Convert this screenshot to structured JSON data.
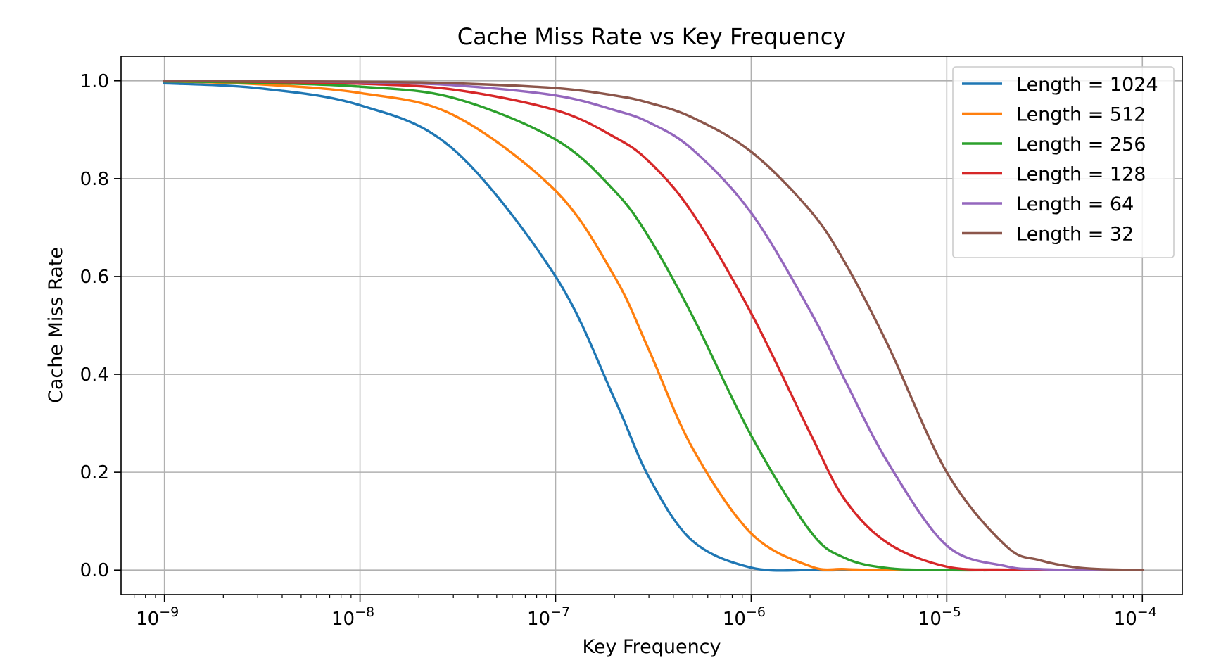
{
  "chart_data": {
    "type": "line",
    "title": "Cache Miss Rate vs Key Frequency",
    "xlabel": "Key Frequency",
    "ylabel": "Cache Miss Rate",
    "xscale": "log",
    "xlim": [
      6e-10,
      0.00016
    ],
    "ylim": [
      -0.05,
      1.05
    ],
    "grid": true,
    "legend_position": "top-right",
    "x_ticks": [
      {
        "value": 1e-09,
        "base": "10",
        "exp": "−9"
      },
      {
        "value": 1e-08,
        "base": "10",
        "exp": "−8"
      },
      {
        "value": 1e-07,
        "base": "10",
        "exp": "−7"
      },
      {
        "value": 1e-06,
        "base": "10",
        "exp": "−6"
      },
      {
        "value": 1e-05,
        "base": "10",
        "exp": "−5"
      },
      {
        "value": 0.0001,
        "base": "10",
        "exp": "−4"
      }
    ],
    "y_ticks": [
      {
        "value": 0.0,
        "label": "0.0"
      },
      {
        "value": 0.2,
        "label": "0.2"
      },
      {
        "value": 0.4,
        "label": "0.4"
      },
      {
        "value": 0.6,
        "label": "0.6"
      },
      {
        "value": 0.8,
        "label": "0.8"
      },
      {
        "value": 1.0,
        "label": "1.0"
      }
    ],
    "x": [
      1e-09,
      3e-09,
      1e-08,
      3e-08,
      1e-07,
      2e-07,
      3e-07,
      5e-07,
      1e-06,
      2e-06,
      3e-06,
      5e-06,
      1e-05,
      2e-05,
      3e-05,
      5e-05,
      0.0001
    ],
    "series": [
      {
        "name": "Length = 1024",
        "color": "#1f77b4",
        "values": [
          0.995,
          0.985,
          0.95,
          0.86,
          0.6,
          0.35,
          0.19,
          0.06,
          0.005,
          0.0,
          0.0,
          0.0,
          0.0,
          0.0,
          0.0,
          0.0,
          0.0
        ]
      },
      {
        "name": "Length = 512",
        "color": "#ff7f0e",
        "values": [
          0.999,
          0.993,
          0.975,
          0.93,
          0.775,
          0.6,
          0.45,
          0.25,
          0.075,
          0.008,
          0.002,
          0.0,
          0.0,
          0.0,
          0.0,
          0.0,
          0.0
        ]
      },
      {
        "name": "Length = 256",
        "color": "#2ca02c",
        "values": [
          0.999,
          0.996,
          0.988,
          0.965,
          0.88,
          0.775,
          0.68,
          0.52,
          0.275,
          0.08,
          0.025,
          0.004,
          0.0,
          0.0,
          0.0,
          0.0,
          0.0
        ]
      },
      {
        "name": "Length = 128",
        "color": "#d62728",
        "values": [
          1.0,
          0.998,
          0.994,
          0.982,
          0.94,
          0.885,
          0.835,
          0.73,
          0.525,
          0.28,
          0.145,
          0.055,
          0.007,
          0.001,
          0.0,
          0.0,
          0.0
        ]
      },
      {
        "name": "Length = 64",
        "color": "#9467bd",
        "values": [
          1.0,
          0.999,
          0.997,
          0.991,
          0.97,
          0.94,
          0.915,
          0.86,
          0.73,
          0.53,
          0.39,
          0.22,
          0.05,
          0.008,
          0.002,
          0.0,
          0.0
        ]
      },
      {
        "name": "Length = 32",
        "color": "#8c564b",
        "values": [
          1.0,
          0.999,
          0.998,
          0.995,
          0.985,
          0.97,
          0.955,
          0.925,
          0.855,
          0.735,
          0.63,
          0.46,
          0.2,
          0.05,
          0.02,
          0.004,
          0.0
        ]
      }
    ]
  }
}
